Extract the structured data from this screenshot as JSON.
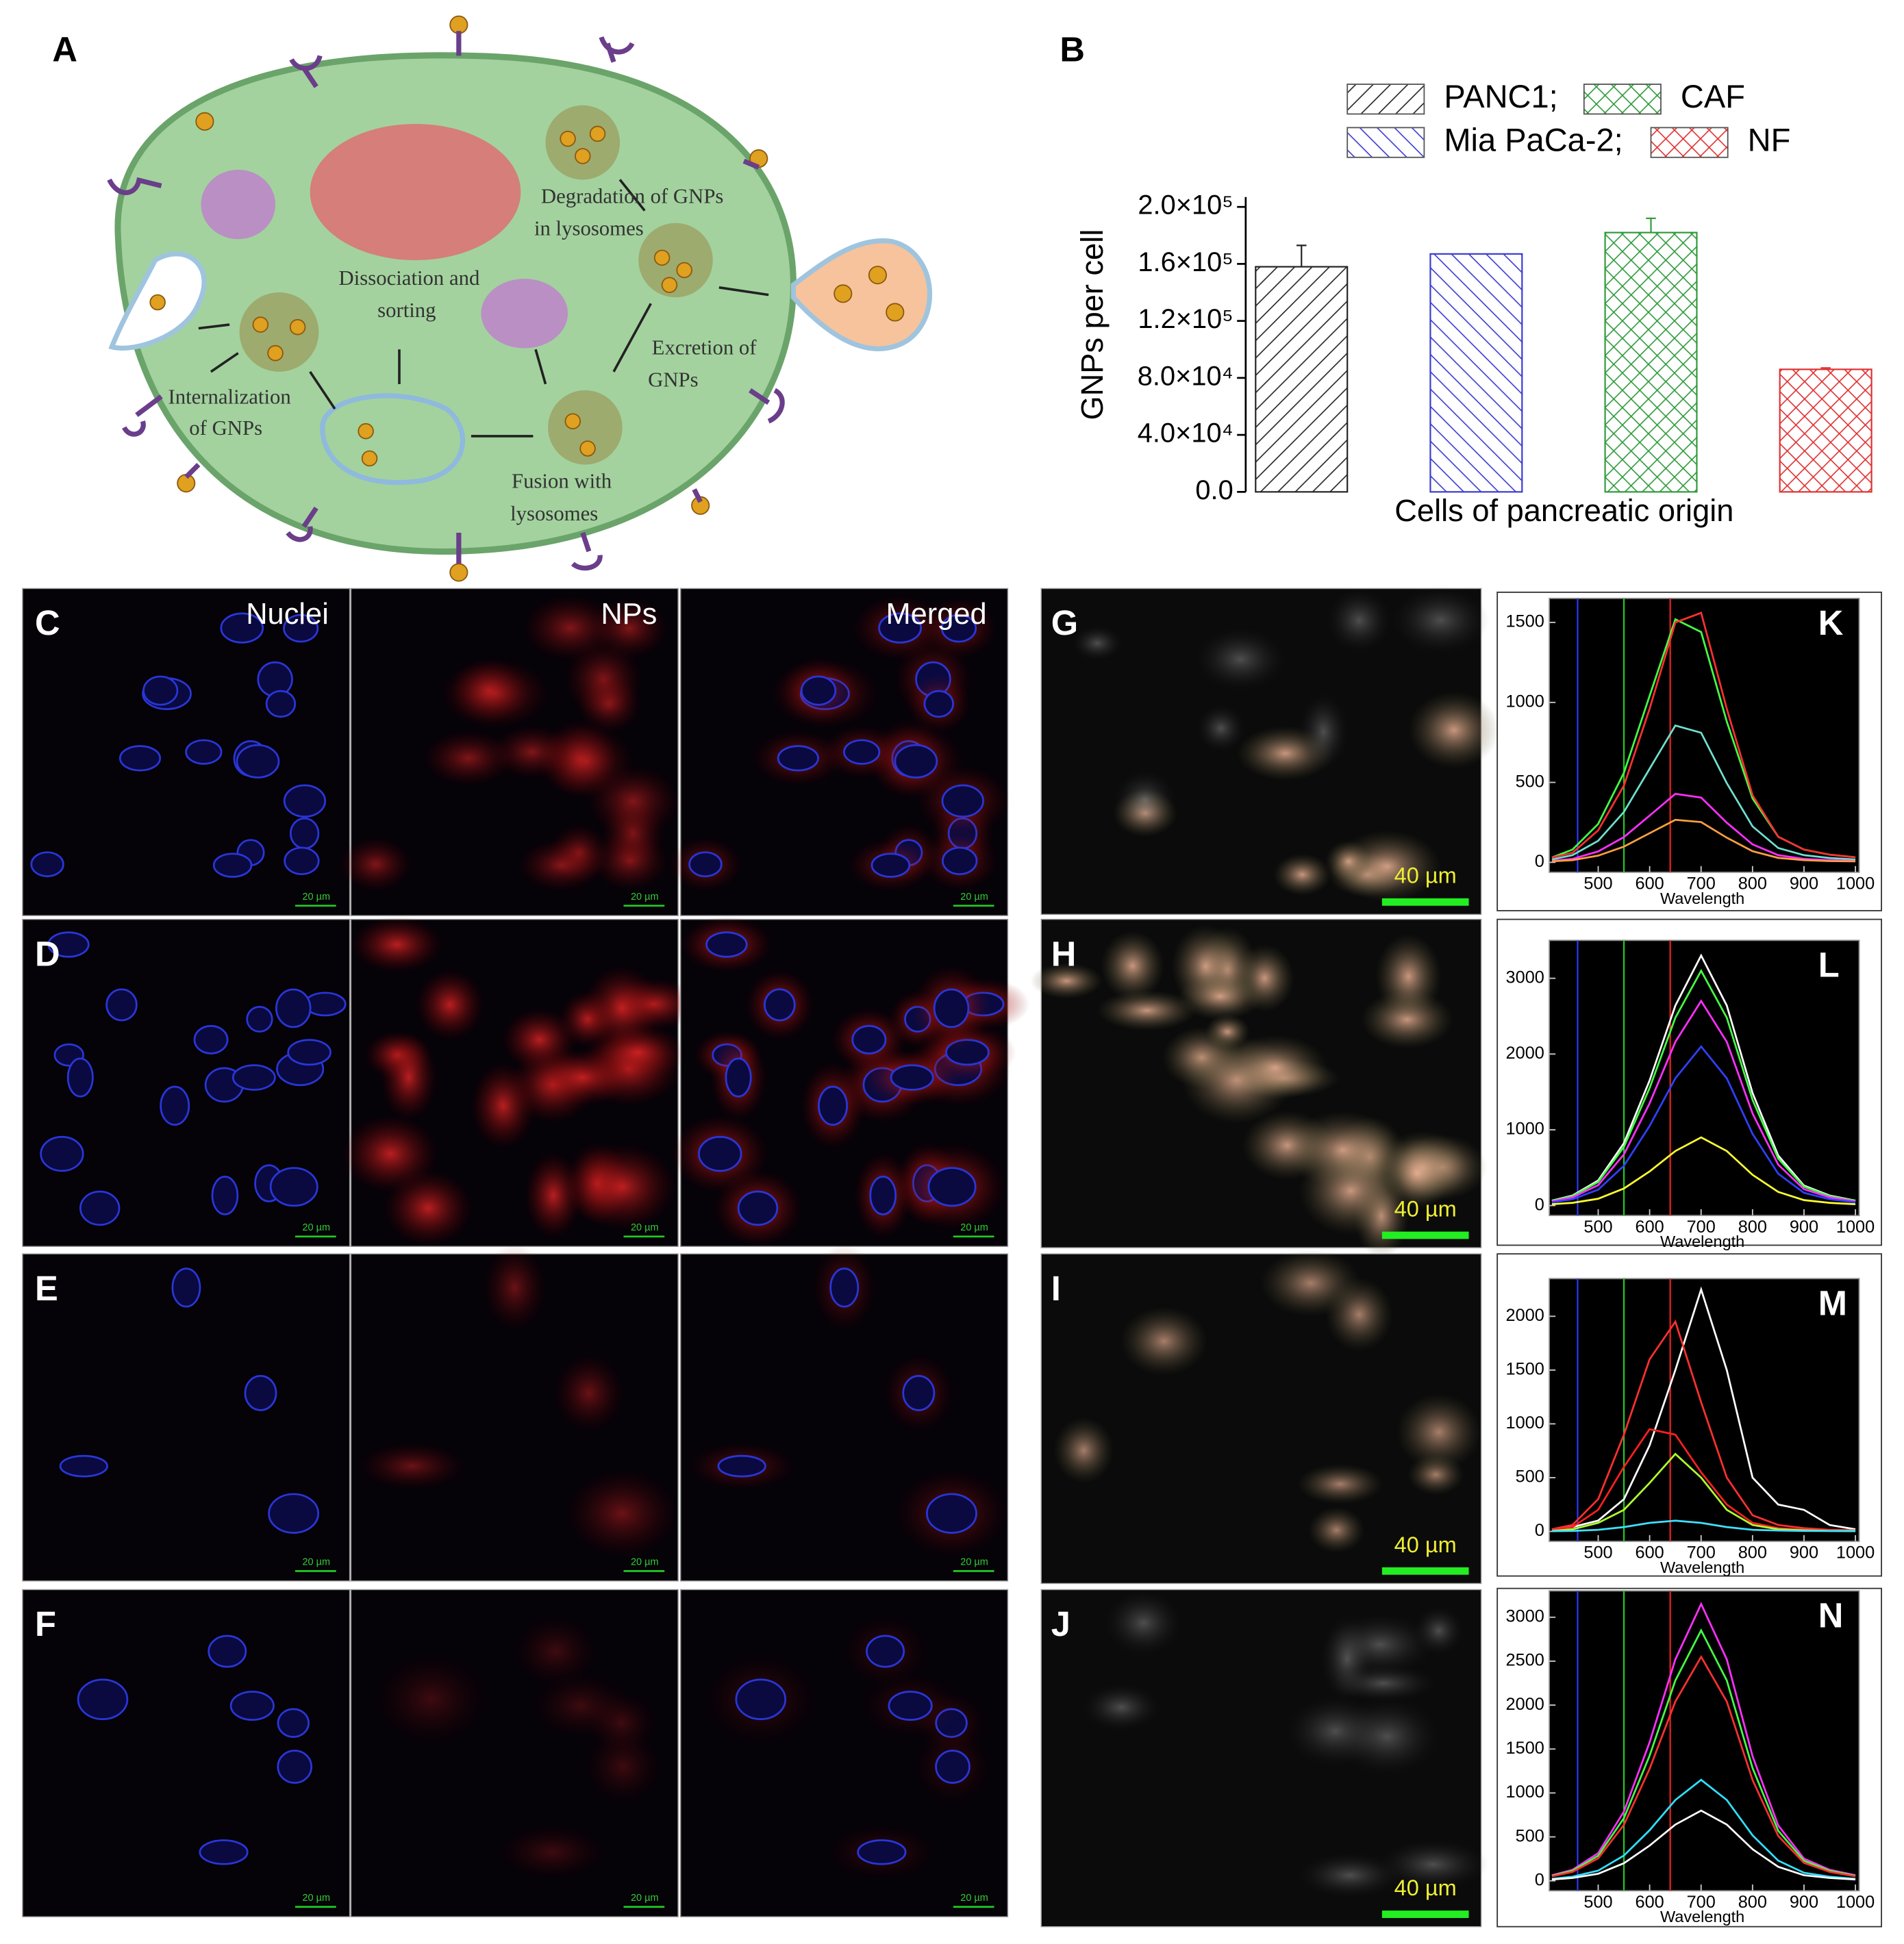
{
  "diagram": {
    "label": "A",
    "texts": [
      [
        "Dissociation and",
        "sorting"
      ],
      [
        "Degradation of GNPs",
        "in lysosomes"
      ],
      [
        "Excretion of",
        "GNPs"
      ],
      [
        "Internalization",
        "of GNPs"
      ],
      [
        "Fusion with",
        "lysosomes"
      ]
    ]
  },
  "microscopy": {
    "rows": [
      "C",
      "D",
      "E",
      "F"
    ],
    "columns": [
      "Nuclei",
      "NPs",
      "Merged"
    ],
    "scale_confocal": "20 µm",
    "darkfield": [
      "G",
      "H",
      "I",
      "J"
    ],
    "scale_darkfield": "40 µm"
  },
  "chart_data": [
    {
      "type": "bar",
      "label": "B",
      "xlabel": "Cells of pancreatic origin",
      "ylabel": "GNPs per cell",
      "ylim": [
        0,
        200000
      ],
      "yticks": [
        {
          "value": 0,
          "label": "0.0"
        },
        {
          "value": 40000,
          "label": "4.0×10⁴"
        },
        {
          "value": 80000,
          "label": "8.0×10⁴"
        },
        {
          "value": 120000,
          "label": "1.2×10⁵"
        },
        {
          "value": 160000,
          "label": "1.6×10⁵"
        },
        {
          "value": 200000,
          "label": "2.0×10⁵"
        }
      ],
      "series": [
        {
          "name": "PANC1;",
          "color": "#222222",
          "hatch": "/",
          "values": [
            158000
          ],
          "errors": [
            15000
          ]
        },
        {
          "name": "Mia PaCa-2;",
          "color": "#3a3ad0",
          "hatch": "\\",
          "values": [
            167000
          ],
          "errors": [
            0
          ]
        },
        {
          "name": "CAF",
          "color": "#2e9a3a",
          "hatch": "x",
          "values": [
            182000
          ],
          "errors": [
            10000
          ]
        },
        {
          "name": "NF",
          "color": "#e03030",
          "hatch": "x",
          "values": [
            86000
          ],
          "errors": [
            1000
          ]
        }
      ]
    },
    {
      "type": "line",
      "label": "K",
      "xlabel": "Wavelength",
      "xlim": [
        405,
        1000
      ],
      "ylim": [
        0,
        1650
      ],
      "xticks": [
        500,
        600,
        700,
        800,
        900,
        1000
      ],
      "yticks": [
        0,
        500,
        1000,
        1500
      ],
      "markers": [
        {
          "value": 460,
          "color": "#2b3bff"
        },
        {
          "value": 550,
          "color": "#22cc22"
        },
        {
          "value": 640,
          "color": "#ee2222"
        }
      ],
      "x": [
        410,
        450,
        500,
        550,
        600,
        650,
        700,
        750,
        800,
        850,
        900,
        950,
        1000
      ],
      "series": [
        {
          "color": "#44ff44",
          "values": [
            30,
            80,
            240,
            560,
            1040,
            1520,
            1440,
            880,
            400,
            160,
            80,
            48,
            32
          ]
        },
        {
          "color": "#ff3030",
          "values": [
            30,
            60,
            200,
            480,
            960,
            1500,
            1560,
            960,
            420,
            160,
            80,
            48,
            32
          ]
        },
        {
          "color": "#70e0d0",
          "values": [
            18,
            45,
            135,
            315,
            585,
            855,
            810,
            495,
            225,
            90,
            45,
            27,
            18
          ]
        },
        {
          "color": "#ff30ff",
          "values": [
            9,
            22,
            68,
            158,
            292,
            428,
            405,
            248,
            112,
            45,
            22,
            14,
            9
          ]
        },
        {
          "color": "#ffa040",
          "values": [
            6,
            14,
            42,
            98,
            182,
            266,
            252,
            154,
            70,
            28,
            14,
            8,
            6
          ]
        }
      ]
    },
    {
      "type": "line",
      "label": "L",
      "xlabel": "Wavelength",
      "xlim": [
        405,
        1000
      ],
      "ylim": [
        0,
        3500
      ],
      "xticks": [
        500,
        600,
        700,
        800,
        900,
        1000
      ],
      "yticks": [
        0,
        1000,
        2000,
        3000
      ],
      "markers": [
        {
          "value": 460,
          "color": "#2b3bff"
        },
        {
          "value": 550,
          "color": "#22cc22"
        },
        {
          "value": 640,
          "color": "#ee2222"
        }
      ],
      "x": [
        410,
        450,
        500,
        550,
        600,
        650,
        700,
        750,
        800,
        850,
        900,
        950,
        1000
      ],
      "series": [
        {
          "color": "#ffffff",
          "values": [
            66,
            132,
            330,
            825,
            1650,
            2640,
            3300,
            2640,
            1485,
            660,
            264,
            132,
            66
          ]
        },
        {
          "color": "#44ff44",
          "values": [
            62,
            124,
            310,
            775,
            1550,
            2480,
            3100,
            2480,
            1395,
            620,
            248,
            124,
            62
          ]
        },
        {
          "color": "#ff30ff",
          "values": [
            54,
            108,
            270,
            675,
            1350,
            2160,
            2700,
            2160,
            1215,
            540,
            216,
            108,
            54
          ]
        },
        {
          "color": "#3040ff",
          "values": [
            42,
            84,
            210,
            525,
            1050,
            1680,
            2100,
            1680,
            945,
            420,
            168,
            84,
            42
          ]
        },
        {
          "color": "#ffff30",
          "values": [
            18,
            36,
            90,
            225,
            450,
            720,
            900,
            720,
            405,
            180,
            72,
            36,
            18
          ]
        }
      ]
    },
    {
      "type": "line",
      "label": "M",
      "xlabel": "Wavelength",
      "xlim": [
        405,
        1000
      ],
      "ylim": [
        0,
        2350
      ],
      "xticks": [
        500,
        600,
        700,
        800,
        900,
        1000
      ],
      "yticks": [
        0,
        500,
        1000,
        1500,
        2000
      ],
      "markers": [
        {
          "value": 460,
          "color": "#2b3bff"
        },
        {
          "value": 550,
          "color": "#22cc22"
        },
        {
          "value": 640,
          "color": "#ee2222"
        }
      ],
      "x": [
        410,
        450,
        500,
        550,
        600,
        650,
        700,
        750,
        800,
        850,
        900,
        950,
        1000
      ],
      "series": [
        {
          "color": "#ffffff",
          "values": [
            20,
            40,
            100,
            300,
            800,
            1500,
            2250,
            1500,
            500,
            250,
            200,
            60,
            20
          ]
        },
        {
          "color": "#ff3030",
          "values": [
            20,
            60,
            300,
            900,
            1600,
            1950,
            1200,
            500,
            150,
            60,
            30,
            15,
            10
          ]
        },
        {
          "color": "#ff2020",
          "values": [
            10,
            40,
            200,
            600,
            950,
            900,
            550,
            250,
            80,
            30,
            15,
            10,
            5
          ]
        },
        {
          "color": "#b0ff30",
          "values": [
            5,
            20,
            80,
            200,
            450,
            720,
            500,
            200,
            60,
            20,
            10,
            5,
            5
          ]
        },
        {
          "color": "#40e0ff",
          "values": [
            2,
            5,
            15,
            40,
            80,
            100,
            80,
            40,
            15,
            8,
            5,
            3,
            2
          ]
        }
      ]
    },
    {
      "type": "line",
      "label": "N",
      "xlabel": "Wavelength",
      "xlim": [
        405,
        1000
      ],
      "ylim": [
        0,
        3300
      ],
      "xticks": [
        500,
        600,
        700,
        800,
        900,
        1000
      ],
      "yticks": [
        0,
        500,
        1000,
        1500,
        2000,
        2500,
        3000
      ],
      "markers": [
        {
          "value": 460,
          "color": "#2b3bff"
        },
        {
          "value": 550,
          "color": "#22cc22"
        },
        {
          "value": 640,
          "color": "#ee2222"
        }
      ],
      "x": [
        410,
        450,
        500,
        550,
        600,
        650,
        700,
        750,
        800,
        850,
        900,
        950,
        1000
      ],
      "series": [
        {
          "color": "#ff30ff",
          "values": [
            63,
            126,
            315,
            788,
            1575,
            2520,
            3150,
            2520,
            1418,
            630,
            252,
            126,
            63
          ]
        },
        {
          "color": "#44ff44",
          "values": [
            57,
            114,
            285,
            713,
            1425,
            2280,
            2850,
            2280,
            1283,
            570,
            228,
            114,
            57
          ]
        },
        {
          "color": "#ff3030",
          "values": [
            51,
            102,
            255,
            638,
            1275,
            2040,
            2550,
            2040,
            1148,
            510,
            204,
            102,
            51
          ]
        },
        {
          "color": "#30e0ff",
          "values": [
            23,
            46,
            115,
            288,
            575,
            920,
            1150,
            920,
            518,
            230,
            92,
            46,
            23
          ]
        },
        {
          "color": "#ffffff",
          "values": [
            16,
            32,
            80,
            200,
            400,
            640,
            800,
            640,
            360,
            160,
            64,
            32,
            16
          ]
        }
      ]
    }
  ]
}
